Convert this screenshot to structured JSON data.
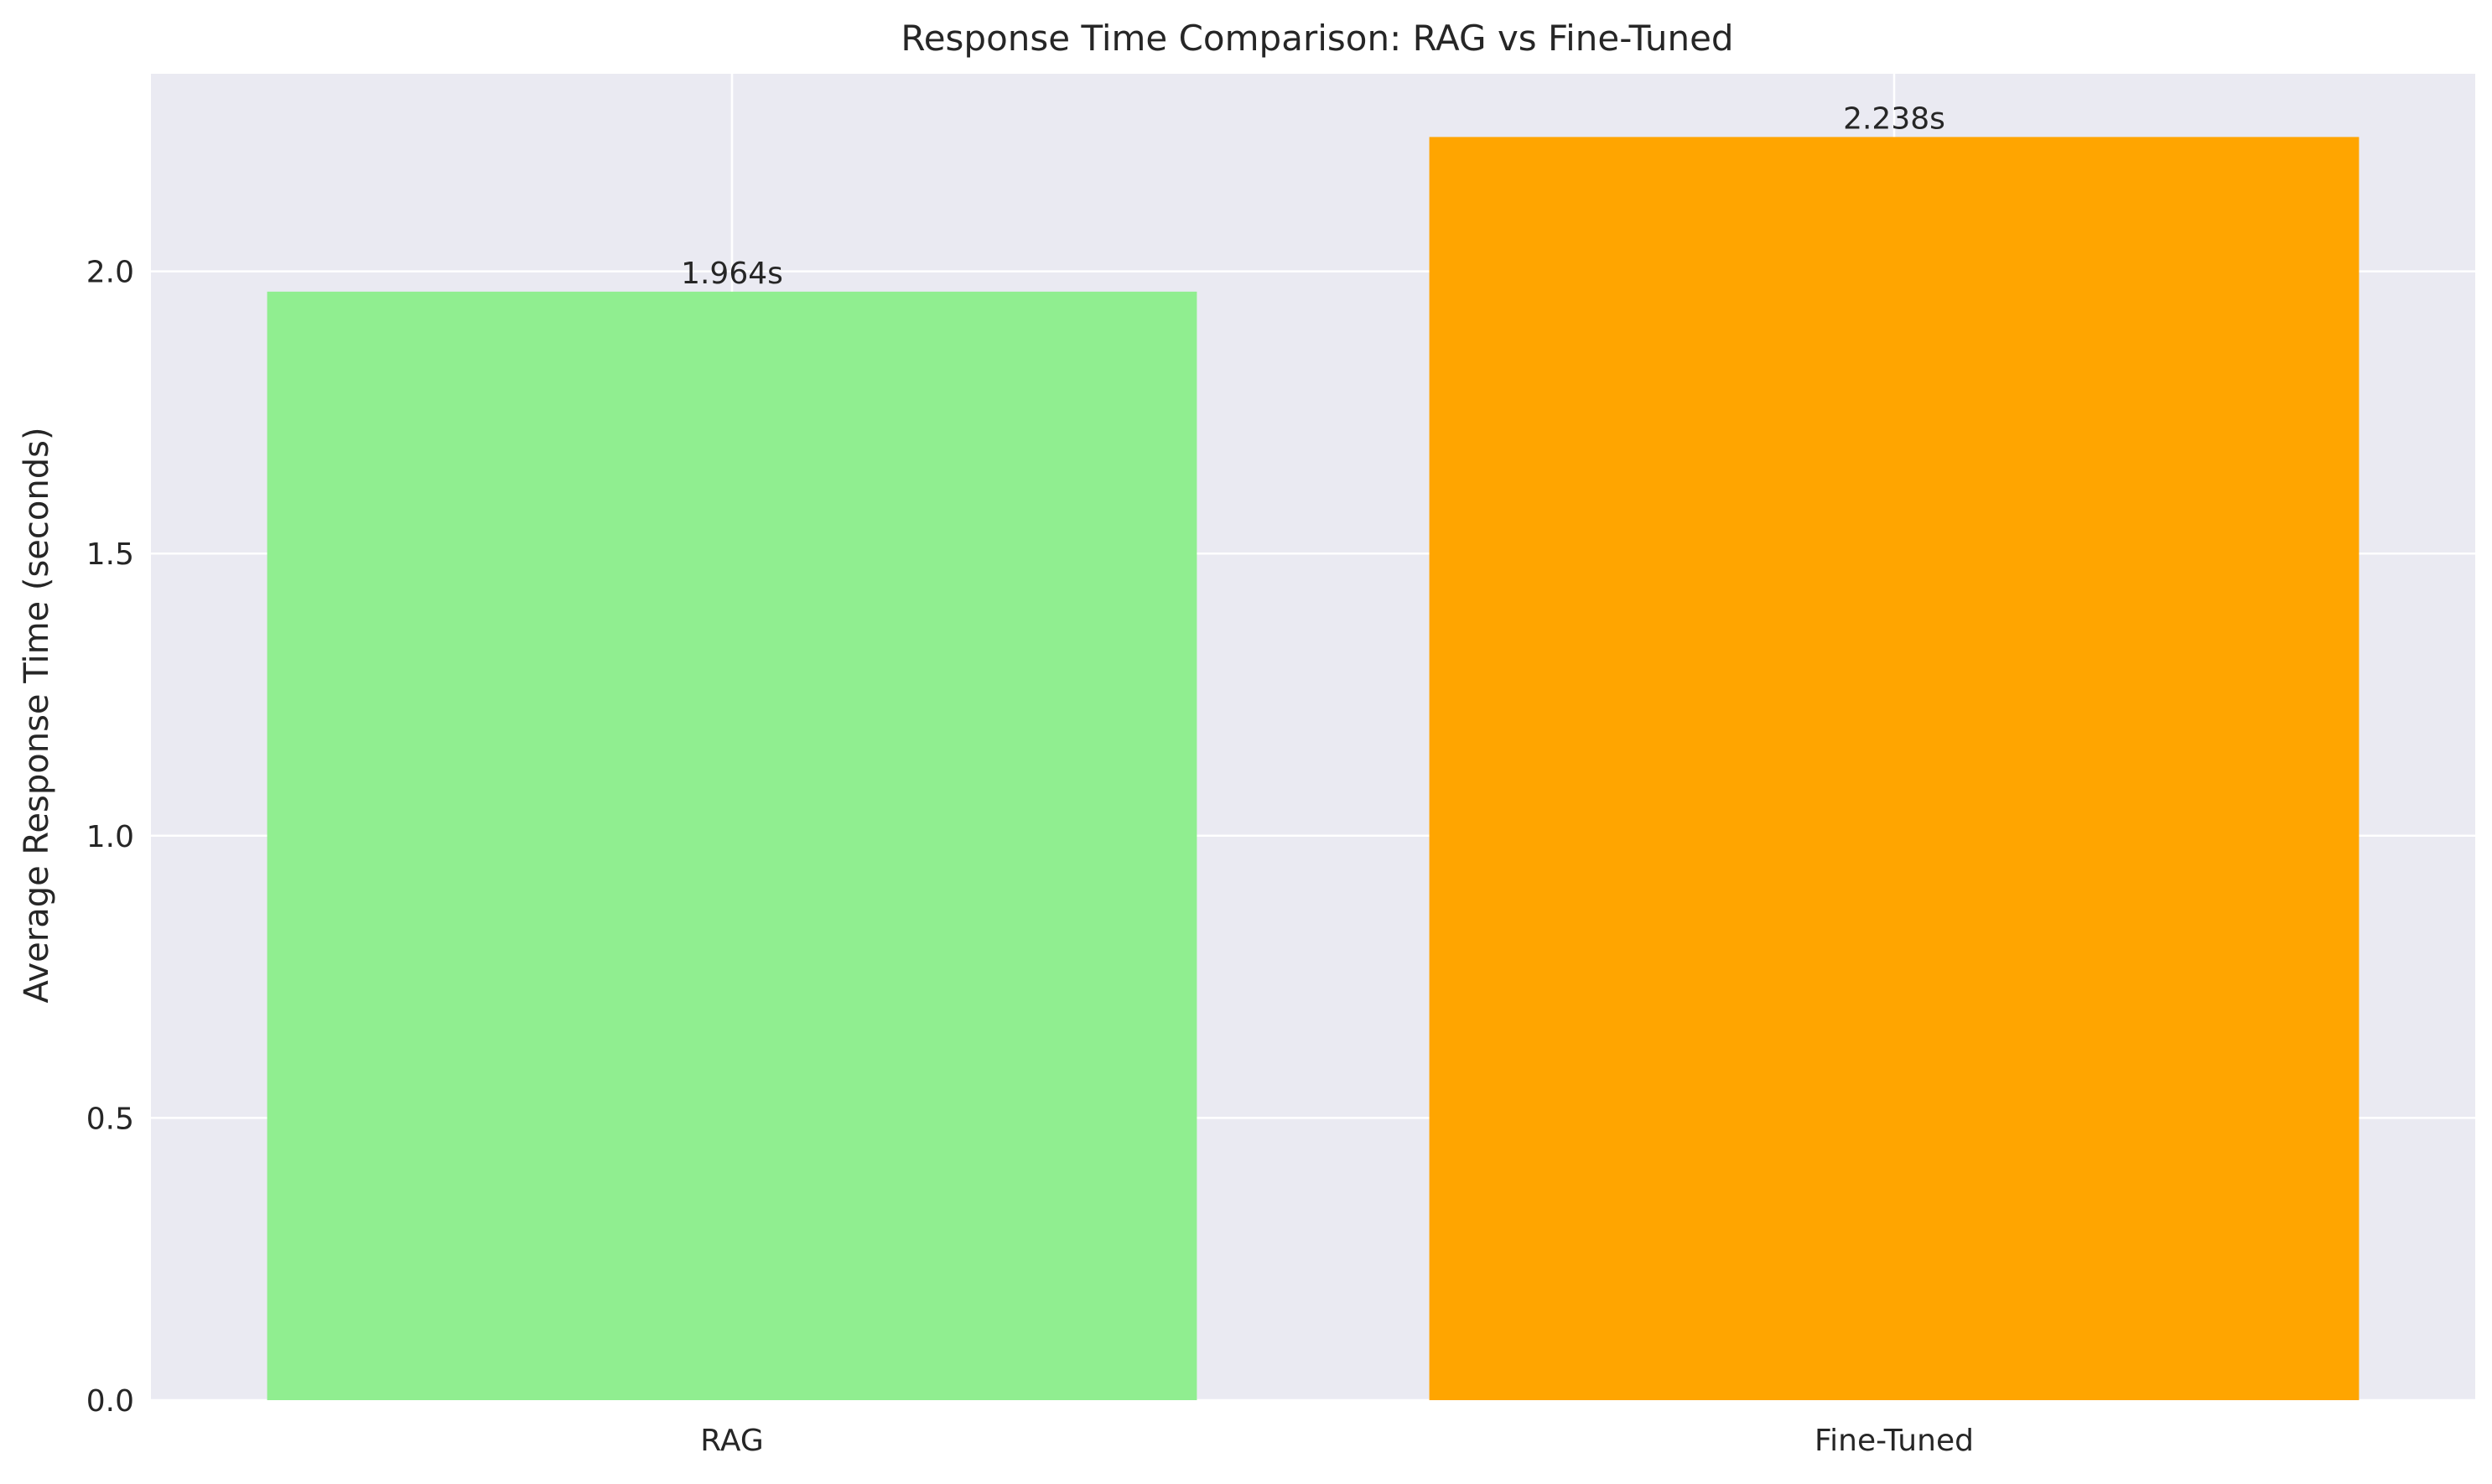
{
  "chart_data": {
    "type": "bar",
    "title": "Response Time Comparison: RAG vs Fine-Tuned",
    "xlabel": "",
    "ylabel": "Average Response Time (seconds)",
    "categories": [
      "RAG",
      "Fine-Tuned"
    ],
    "values": [
      1.964,
      2.238
    ],
    "value_labels": [
      "1.964s",
      "2.238s"
    ],
    "colors": [
      "#90EE90",
      "#FFA500"
    ],
    "ylim": [
      0,
      2.35
    ],
    "yticks": [
      0.0,
      0.5,
      1.0,
      1.5,
      2.0
    ],
    "ytick_labels": [
      "0.0",
      "0.5",
      "1.0",
      "1.5",
      "2.0"
    ],
    "grid": true,
    "background": "#EAEAF2"
  }
}
